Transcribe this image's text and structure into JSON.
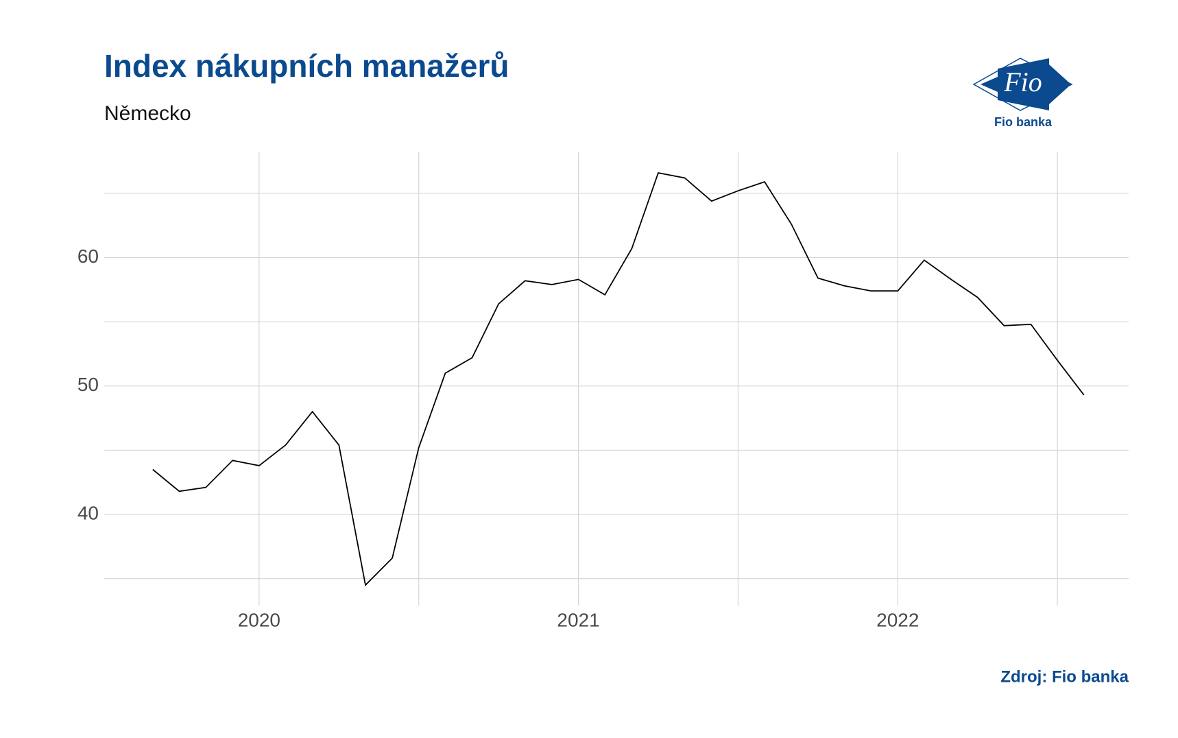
{
  "chart_data": {
    "type": "line",
    "title": "Index nákupních manažerů",
    "subtitle": "Německo",
    "source": "Zdroj: Fio banka",
    "logo": {
      "mark": "Fio",
      "name": "Fio banka"
    },
    "x": [
      2019.667,
      2019.75,
      2019.833,
      2019.917,
      2020,
      2020.083,
      2020.167,
      2020.25,
      2020.333,
      2020.417,
      2020.5,
      2020.583,
      2020.667,
      2020.75,
      2020.833,
      2020.917,
      2021,
      2021.083,
      2021.167,
      2021.25,
      2021.333,
      2021.417,
      2021.5,
      2021.583,
      2021.667,
      2021.75,
      2021.833,
      2021.917,
      2022,
      2022.083,
      2022.167,
      2022.25,
      2022.333,
      2022.417,
      2022.5,
      2022.583
    ],
    "series": [
      {
        "color": "#000000",
        "values": [
          43.5,
          41.8,
          42.1,
          44.2,
          43.8,
          45.4,
          48.0,
          45.4,
          34.5,
          36.6,
          45.2,
          51.0,
          52.2,
          56.4,
          58.2,
          57.9,
          58.3,
          57.1,
          60.7,
          66.6,
          66.2,
          64.4,
          65.2,
          65.9,
          62.6,
          58.4,
          57.8,
          57.4,
          57.4,
          59.8,
          58.3,
          56.9,
          54.7,
          54.8,
          52.0,
          49.3
        ]
      }
    ],
    "xlim": [
      2019.515,
      2022.723
    ],
    "xticks": [
      2020,
      2021,
      2022
    ],
    "xminor": [
      2020.5,
      2021.5,
      2022.5
    ],
    "ylim": [
      32.9,
      68.2
    ],
    "yticks": [
      40,
      50,
      60
    ],
    "yminor": [
      35,
      45,
      55,
      65
    ],
    "grid": true
  }
}
